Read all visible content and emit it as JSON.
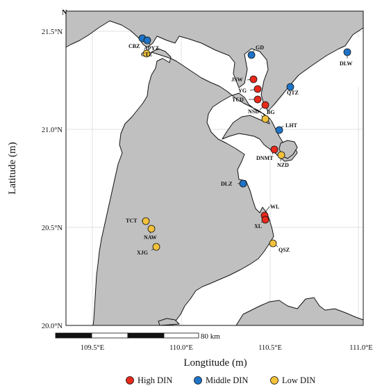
{
  "map": {
    "north_label": "N",
    "x_title": "Longtitude (m)",
    "y_title": "Latitude (m)",
    "x_ticks": [
      "109.5°E",
      "110.0°E",
      "110.5°E",
      "111.0°E"
    ],
    "y_ticks": [
      "21.5°N",
      "21.0°N",
      "20.5°N",
      "20.0°N"
    ],
    "scale_label": "80 km"
  },
  "legend": {
    "high": "High DIN",
    "middle": "Middle DIN",
    "low": "Low DIN"
  },
  "colors": {
    "high": "#e8291c",
    "middle": "#1f74c7",
    "low": "#f2c13a",
    "land": "#c0c0c0",
    "sea": "#ffffff"
  },
  "stations": [
    {
      "id": "CBZ",
      "group": "middle"
    },
    {
      "id": "APYZ",
      "group": "middle"
    },
    {
      "id": "CTZ",
      "group": "low"
    },
    {
      "id": "GD",
      "group": "middle"
    },
    {
      "id": "DLW",
      "group": "middle"
    },
    {
      "id": "JSW",
      "group": "high"
    },
    {
      "id": "YG",
      "group": "high"
    },
    {
      "id": "QTZ",
      "group": "middle"
    },
    {
      "id": "TCD",
      "group": "high"
    },
    {
      "id": "NSD",
      "group": "high"
    },
    {
      "id": "BG",
      "group": "low"
    },
    {
      "id": "LHT",
      "group": "middle"
    },
    {
      "id": "DNMT",
      "group": "high"
    },
    {
      "id": "NZD",
      "group": "low"
    },
    {
      "id": "DLZ",
      "group": "middle"
    },
    {
      "id": "WL",
      "group": "high"
    },
    {
      "id": "XL",
      "group": "high"
    },
    {
      "id": "TCT",
      "group": "low"
    },
    {
      "id": "NAW",
      "group": "low"
    },
    {
      "id": "XJG",
      "group": "low"
    },
    {
      "id": "QSZ",
      "group": "low"
    }
  ]
}
